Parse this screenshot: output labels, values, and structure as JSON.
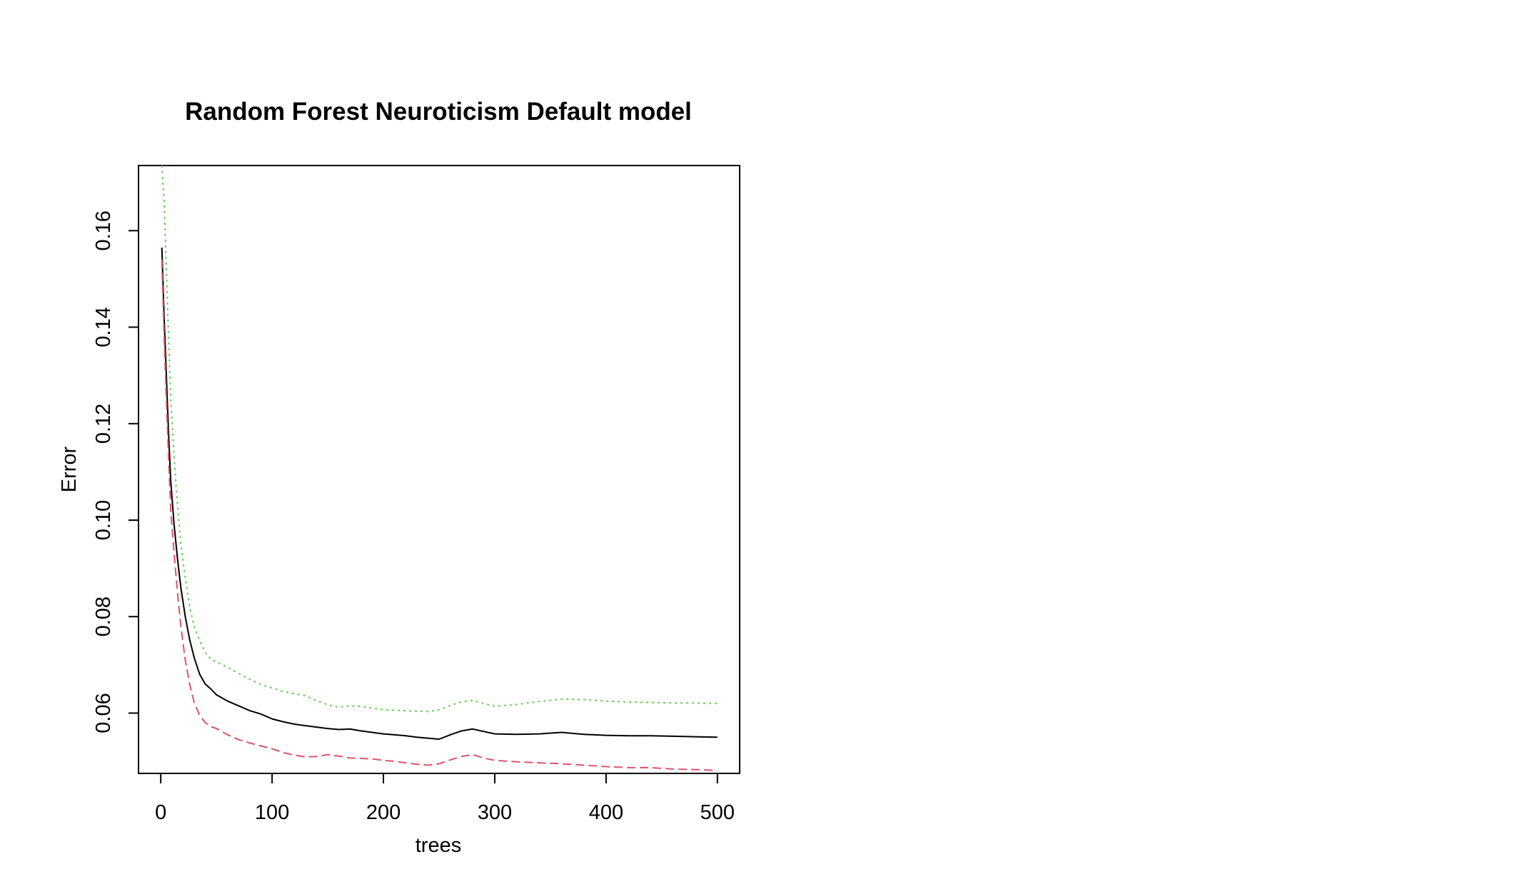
{
  "chart_data": {
    "type": "line",
    "title": "Random Forest Neuroticism Default model",
    "xlabel": "trees",
    "ylabel": "Error",
    "xlim": [
      0,
      500
    ],
    "ylim": [
      0.0475,
      0.1735
    ],
    "xticks": [
      "0",
      "100",
      "200",
      "300",
      "400",
      "500"
    ],
    "xtick_values": [
      0,
      100,
      200,
      300,
      400,
      500
    ],
    "yticks": [
      "0.06",
      "0.08",
      "0.10",
      "0.12",
      "0.14",
      "0.16"
    ],
    "ytick_values": [
      0.06,
      0.08,
      0.1,
      0.12,
      0.14,
      0.16
    ],
    "grid": false,
    "legend": "none",
    "series": [
      {
        "color": "#000000",
        "dash": "solid",
        "x": [
          1,
          3,
          5,
          7,
          9,
          12,
          15,
          18,
          22,
          26,
          30,
          35,
          40,
          45,
          50,
          60,
          70,
          80,
          90,
          100,
          110,
          120,
          130,
          140,
          150,
          160,
          170,
          180,
          190,
          200,
          210,
          220,
          230,
          240,
          250,
          260,
          270,
          280,
          290,
          300,
          320,
          340,
          360,
          380,
          400,
          420,
          440,
          460,
          480,
          500
        ],
        "y": [
          0.1565,
          0.142,
          0.13,
          0.118,
          0.108,
          0.099,
          0.092,
          0.086,
          0.08,
          0.0752,
          0.0715,
          0.068,
          0.066,
          0.065,
          0.0638,
          0.0625,
          0.0615,
          0.0605,
          0.0598,
          0.0588,
          0.0582,
          0.0577,
          0.0574,
          0.0571,
          0.0568,
          0.0566,
          0.0567,
          0.0563,
          0.056,
          0.0557,
          0.0555,
          0.0553,
          0.055,
          0.0548,
          0.0546,
          0.0555,
          0.0563,
          0.0567,
          0.0562,
          0.0557,
          0.0556,
          0.0557,
          0.056,
          0.0556,
          0.0554,
          0.0553,
          0.0553,
          0.0552,
          0.0551,
          0.055
        ]
      },
      {
        "color": "#DF536B",
        "dash": "dashed",
        "x": [
          1,
          3,
          5,
          7,
          9,
          12,
          15,
          18,
          22,
          26,
          30,
          35,
          40,
          45,
          50,
          60,
          70,
          80,
          90,
          100,
          110,
          120,
          130,
          140,
          150,
          160,
          170,
          180,
          190,
          200,
          210,
          220,
          230,
          240,
          250,
          260,
          270,
          280,
          290,
          300,
          320,
          340,
          360,
          380,
          400,
          420,
          440,
          460,
          480,
          500
        ],
        "y": [
          0.154,
          0.138,
          0.125,
          0.113,
          0.102,
          0.093,
          0.085,
          0.078,
          0.071,
          0.066,
          0.0622,
          0.0595,
          0.058,
          0.0572,
          0.0568,
          0.0555,
          0.0545,
          0.0538,
          0.0532,
          0.0526,
          0.0518,
          0.0513,
          0.0509,
          0.051,
          0.0514,
          0.0511,
          0.0507,
          0.0506,
          0.0505,
          0.0502,
          0.05,
          0.0497,
          0.0494,
          0.0492,
          0.0495,
          0.0503,
          0.051,
          0.0514,
          0.0507,
          0.0502,
          0.0499,
          0.0497,
          0.0495,
          0.0492,
          0.0489,
          0.0487,
          0.0487,
          0.0484,
          0.0483,
          0.0481
        ]
      },
      {
        "color": "#61D04F",
        "dash": "dotted",
        "x": [
          1,
          3,
          5,
          7,
          9,
          12,
          15,
          18,
          22,
          26,
          30,
          35,
          40,
          45,
          50,
          60,
          70,
          80,
          90,
          100,
          110,
          120,
          130,
          140,
          150,
          160,
          170,
          180,
          190,
          200,
          210,
          220,
          230,
          240,
          250,
          260,
          270,
          280,
          290,
          300,
          320,
          340,
          360,
          380,
          400,
          420,
          440,
          460,
          480,
          500
        ],
        "y": [
          0.1735,
          0.166,
          0.152,
          0.138,
          0.125,
          0.113,
          0.103,
          0.095,
          0.088,
          0.082,
          0.078,
          0.075,
          0.0725,
          0.0712,
          0.0706,
          0.0695,
          0.0682,
          0.067,
          0.0659,
          0.0652,
          0.0645,
          0.064,
          0.0636,
          0.0626,
          0.0617,
          0.0612,
          0.0615,
          0.0614,
          0.061,
          0.0607,
          0.0606,
          0.0605,
          0.0604,
          0.0603,
          0.0607,
          0.0616,
          0.0623,
          0.0626,
          0.062,
          0.0614,
          0.0618,
          0.0624,
          0.0629,
          0.0628,
          0.0625,
          0.0623,
          0.0622,
          0.0621,
          0.0621,
          0.062
        ]
      }
    ]
  }
}
